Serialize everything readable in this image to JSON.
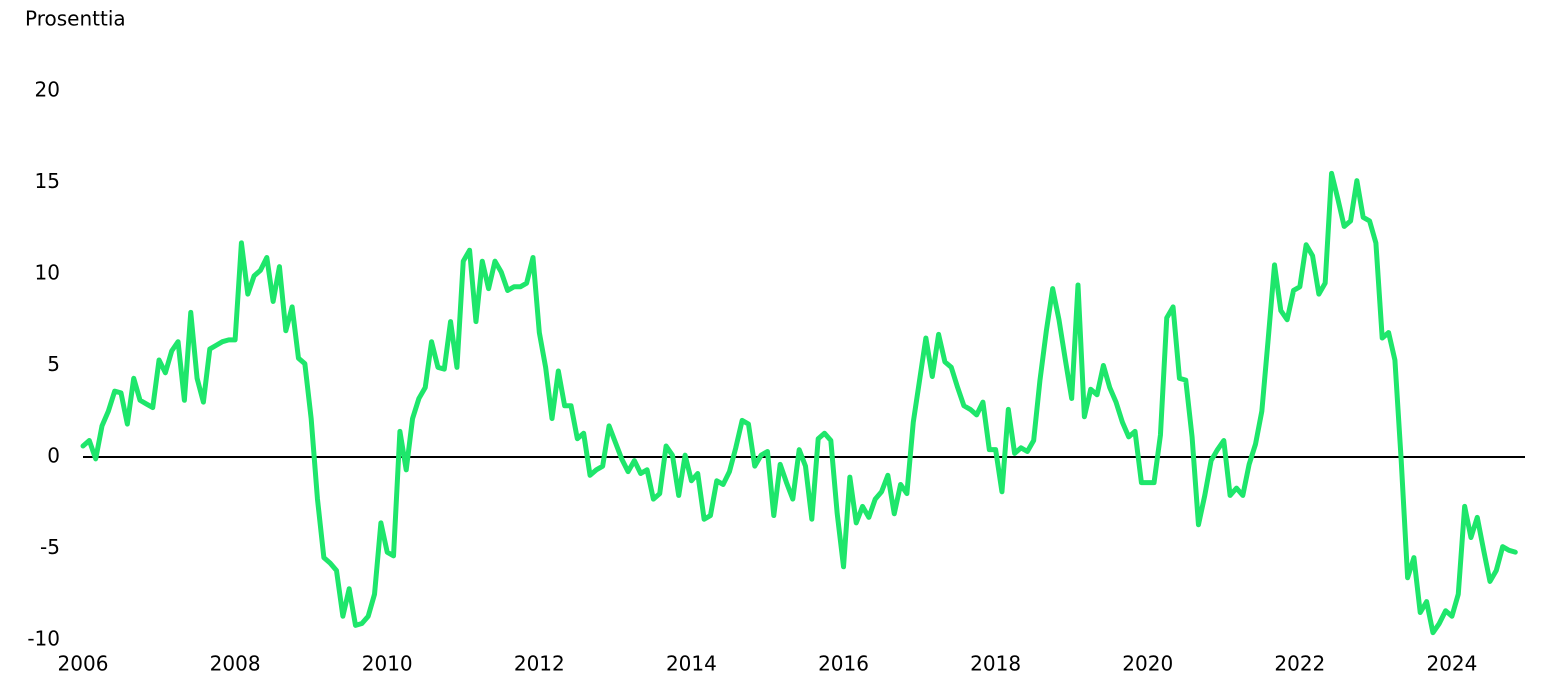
{
  "chart_data": {
    "type": "line",
    "ylabel": "Prosenttia",
    "x": [
      2006,
      2006.083,
      2006.167,
      2006.25,
      2006.333,
      2006.417,
      2006.5,
      2006.583,
      2006.667,
      2006.75,
      2006.833,
      2006.917,
      2007,
      2007.083,
      2007.167,
      2007.25,
      2007.333,
      2007.417,
      2007.5,
      2007.583,
      2007.667,
      2007.75,
      2007.833,
      2007.917,
      2008,
      2008.083,
      2008.167,
      2008.25,
      2008.333,
      2008.417,
      2008.5,
      2008.583,
      2008.667,
      2008.75,
      2008.833,
      2008.917,
      2009,
      2009.083,
      2009.167,
      2009.25,
      2009.333,
      2009.417,
      2009.5,
      2009.583,
      2009.667,
      2009.75,
      2009.833,
      2009.917,
      2010,
      2010.083,
      2010.167,
      2010.25,
      2010.333,
      2010.417,
      2010.5,
      2010.583,
      2010.667,
      2010.75,
      2010.833,
      2010.917,
      2011,
      2011.083,
      2011.167,
      2011.25,
      2011.333,
      2011.417,
      2011.5,
      2011.583,
      2011.667,
      2011.75,
      2011.833,
      2011.917,
      2012,
      2012.083,
      2012.167,
      2012.25,
      2012.333,
      2012.417,
      2012.5,
      2012.583,
      2012.667,
      2012.75,
      2012.833,
      2012.917,
      2013,
      2013.083,
      2013.167,
      2013.25,
      2013.333,
      2013.417,
      2013.5,
      2013.583,
      2013.667,
      2013.75,
      2013.833,
      2013.917,
      2014,
      2014.083,
      2014.167,
      2014.25,
      2014.333,
      2014.417,
      2014.5,
      2014.583,
      2014.667,
      2014.75,
      2014.833,
      2014.917,
      2015,
      2015.083,
      2015.167,
      2015.25,
      2015.333,
      2015.417,
      2015.5,
      2015.583,
      2015.667,
      2015.75,
      2015.833,
      2015.917,
      2016,
      2016.083,
      2016.167,
      2016.25,
      2016.333,
      2016.417,
      2016.5,
      2016.583,
      2016.667,
      2016.75,
      2016.833,
      2016.917,
      2017,
      2017.083,
      2017.167,
      2017.25,
      2017.333,
      2017.417,
      2017.5,
      2017.583,
      2017.667,
      2017.75,
      2017.833,
      2017.917,
      2018,
      2018.083,
      2018.167,
      2018.25,
      2018.333,
      2018.417,
      2018.5,
      2018.583,
      2018.667,
      2018.75,
      2018.833,
      2018.917,
      2019,
      2019.083,
      2019.167,
      2019.25,
      2019.333,
      2019.417,
      2019.5,
      2019.583,
      2019.667,
      2019.75,
      2019.833,
      2019.917,
      2020,
      2020.083,
      2020.167,
      2020.25,
      2020.333,
      2020.417,
      2020.5,
      2020.583,
      2020.667,
      2020.75,
      2020.833,
      2020.917,
      2021,
      2021.083,
      2021.167,
      2021.25,
      2021.333,
      2021.417,
      2021.5,
      2021.583,
      2021.667,
      2021.75,
      2021.833,
      2021.917,
      2022,
      2022.083,
      2022.167,
      2022.25,
      2022.333,
      2022.417,
      2022.5,
      2022.583,
      2022.667,
      2022.75,
      2022.833,
      2022.917,
      2023,
      2023.083,
      2023.167,
      2023.25,
      2023.333,
      2023.417,
      2023.5,
      2023.583,
      2023.667,
      2023.75,
      2023.833,
      2023.917,
      2024,
      2024.083,
      2024.167,
      2024.25,
      2024.333,
      2024.417,
      2024.5,
      2024.583,
      2024.667,
      2024.75,
      2024.833
    ],
    "series": [
      {
        "color": "#1ee66b",
        "values": [
          0.6,
          0.9,
          -0.1,
          1.7,
          2.5,
          3.6,
          3.5,
          1.8,
          4.3,
          3.1,
          2.9,
          2.7,
          5.3,
          4.6,
          5.8,
          6.3,
          3.1,
          7.9,
          4.3,
          3.0,
          5.9,
          6.1,
          6.3,
          6.4,
          6.4,
          11.7,
          8.9,
          9.9,
          10.2,
          10.9,
          8.5,
          10.4,
          6.9,
          8.2,
          5.4,
          5.1,
          2.1,
          -2.3,
          -5.5,
          -5.8,
          -6.2,
          -8.7,
          -7.2,
          -9.2,
          -9.1,
          -8.7,
          -7.5,
          -3.6,
          -5.2,
          -5.4,
          1.4,
          -0.7,
          2.1,
          3.2,
          3.8,
          6.3,
          4.9,
          4.8,
          7.4,
          4.9,
          10.7,
          11.3,
          7.4,
          10.7,
          9.2,
          10.7,
          10.1,
          9.1,
          9.3,
          9.3,
          9.5,
          10.9,
          6.8,
          4.9,
          2.1,
          4.7,
          2.8,
          2.8,
          1.0,
          1.3,
          -1.0,
          -0.7,
          -0.5,
          1.7,
          0.8,
          -0.1,
          -0.8,
          -0.2,
          -0.9,
          -0.7,
          -2.3,
          -2.0,
          0.6,
          0.1,
          -2.1,
          0.1,
          -1.3,
          -0.9,
          -3.4,
          -3.2,
          -1.3,
          -1.5,
          -0.8,
          0.5,
          2.0,
          1.8,
          -0.5,
          0.1,
          0.3,
          -3.2,
          -0.4,
          -1.4,
          -2.3,
          0.4,
          -0.5,
          -3.4,
          1.0,
          1.3,
          0.9,
          -3.1,
          -6.0,
          -1.1,
          -3.6,
          -2.7,
          -3.3,
          -2.3,
          -1.9,
          -1.0,
          -3.1,
          -1.5,
          -2.0,
          1.9,
          4.2,
          6.5,
          4.4,
          6.7,
          5.2,
          4.9,
          3.8,
          2.8,
          2.6,
          2.3,
          3.0,
          0.4,
          0.4,
          -1.9,
          2.6,
          0.2,
          0.5,
          0.3,
          0.9,
          4.2,
          6.9,
          9.2,
          7.5,
          5.3,
          3.2,
          9.4,
          2.2,
          3.7,
          3.4,
          5.0,
          3.8,
          3.0,
          1.9,
          1.1,
          1.4,
          -1.4,
          -1.4,
          -1.4,
          1.2,
          7.6,
          8.2,
          4.3,
          4.2,
          1.1,
          -3.7,
          -2.1,
          -0.2,
          0.4,
          0.9,
          -2.1,
          -1.7,
          -2.1,
          -0.4,
          0.7,
          2.5,
          6.4,
          10.5,
          8.0,
          7.5,
          9.1,
          9.3,
          11.6,
          11.0,
          8.9,
          9.5,
          15.5,
          14.1,
          12.6,
          12.9,
          15.1,
          13.1,
          12.9,
          11.7,
          6.5,
          6.8,
          5.3,
          -0.2,
          -6.6,
          -5.5,
          -8.5,
          -7.9,
          -9.6,
          -9.1,
          -8.4,
          -8.7,
          -7.5,
          -2.7,
          -4.4,
          -3.3,
          -5.1,
          -6.8,
          -6.2,
          -4.9,
          -5.1,
          -5.2
        ]
      }
    ],
    "xlim": [
      2006,
      2025
    ],
    "xticks": [
      2006,
      2008,
      2010,
      2012,
      2014,
      2016,
      2018,
      2020,
      2022,
      2024
    ],
    "ylim": [
      -10,
      20
    ],
    "yticks": [
      -10,
      -5,
      0,
      5,
      10,
      15,
      20
    ],
    "zero_line": true
  }
}
